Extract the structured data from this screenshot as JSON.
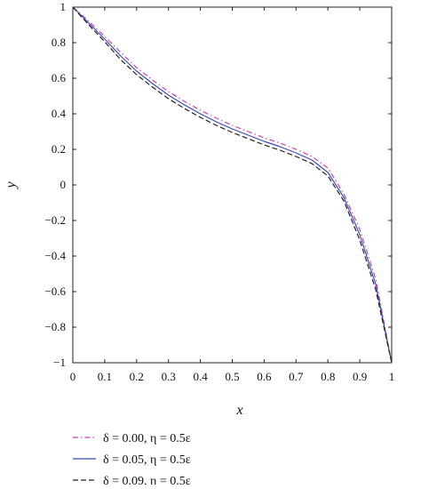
{
  "chart_data": {
    "type": "line",
    "title": "",
    "xlabel": "x",
    "ylabel": "y",
    "xlim": [
      0,
      1
    ],
    "ylim": [
      -1,
      1
    ],
    "grid": false,
    "legend_position": "bottom-left",
    "xticks": [
      "0",
      "0.1",
      "0.2",
      "0.3",
      "0.4",
      "0.5",
      "0.6",
      "0.7",
      "0.8",
      "0.9",
      "1"
    ],
    "yticks": [
      "1",
      "0.8",
      "0.6",
      "0.4",
      "0.2",
      "0",
      "−0.2",
      "−0.4",
      "−0.6",
      "−0.8",
      "−1"
    ],
    "x": [
      0,
      0.05,
      0.1,
      0.15,
      0.2,
      0.25,
      0.3,
      0.35,
      0.4,
      0.45,
      0.5,
      0.55,
      0.6,
      0.65,
      0.7,
      0.75,
      0.8,
      0.85,
      0.9,
      0.95,
      1
    ],
    "series": [
      {
        "name": "δ = 0.00, η = 0.5ε",
        "color": "#cc44aa",
        "dash": "dashdot",
        "values": [
          1.0,
          0.92,
          0.835,
          0.745,
          0.66,
          0.59,
          0.525,
          0.47,
          0.42,
          0.375,
          0.335,
          0.3,
          0.265,
          0.235,
          0.2,
          0.16,
          0.095,
          -0.05,
          -0.25,
          -0.53,
          -1.0
        ]
      },
      {
        "name": "δ = 0.05, η = 0.5ε",
        "color": "#3b4cc0",
        "dash": "solid",
        "values": [
          1.0,
          0.91,
          0.82,
          0.725,
          0.64,
          0.57,
          0.505,
          0.45,
          0.4,
          0.355,
          0.315,
          0.28,
          0.245,
          0.215,
          0.18,
          0.14,
          0.07,
          -0.07,
          -0.28,
          -0.56,
          -1.0
        ]
      },
      {
        "name": "δ = 0.09, η = 0.5ε",
        "color": "#222222",
        "dash": "dashed",
        "values": [
          1.0,
          0.9,
          0.805,
          0.705,
          0.62,
          0.55,
          0.485,
          0.43,
          0.38,
          0.335,
          0.295,
          0.26,
          0.225,
          0.195,
          0.16,
          0.12,
          0.05,
          -0.09,
          -0.31,
          -0.59,
          -1.0
        ]
      }
    ]
  }
}
